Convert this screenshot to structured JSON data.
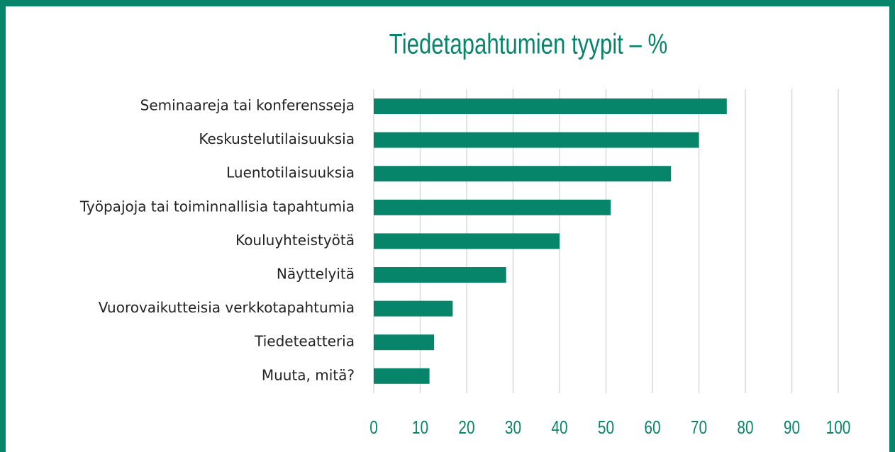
{
  "chart_data": {
    "type": "hbar",
    "title": "Tiedetapahtumien tyypit – %",
    "categories": [
      "Seminaareja tai konferensseja",
      "Keskustelutilaisuuksia",
      "Luentotilaisuuksia",
      "Työpajoja tai toiminnallisia tapahtumia",
      "Kouluyhteistyötä",
      "Näyttelyitä",
      "Vuorovaikutteisia verkkotapahtumia",
      "Tiedeteatteria",
      "Muuta, mitä?"
    ],
    "values": [
      76,
      70,
      64,
      51,
      40,
      28.5,
      17,
      13,
      12
    ],
    "color": "#06856a",
    "xlim": [
      0,
      100
    ],
    "xticks": [
      0,
      10,
      20,
      30,
      40,
      50,
      60,
      70,
      80,
      90,
      100
    ],
    "grid": true
  }
}
